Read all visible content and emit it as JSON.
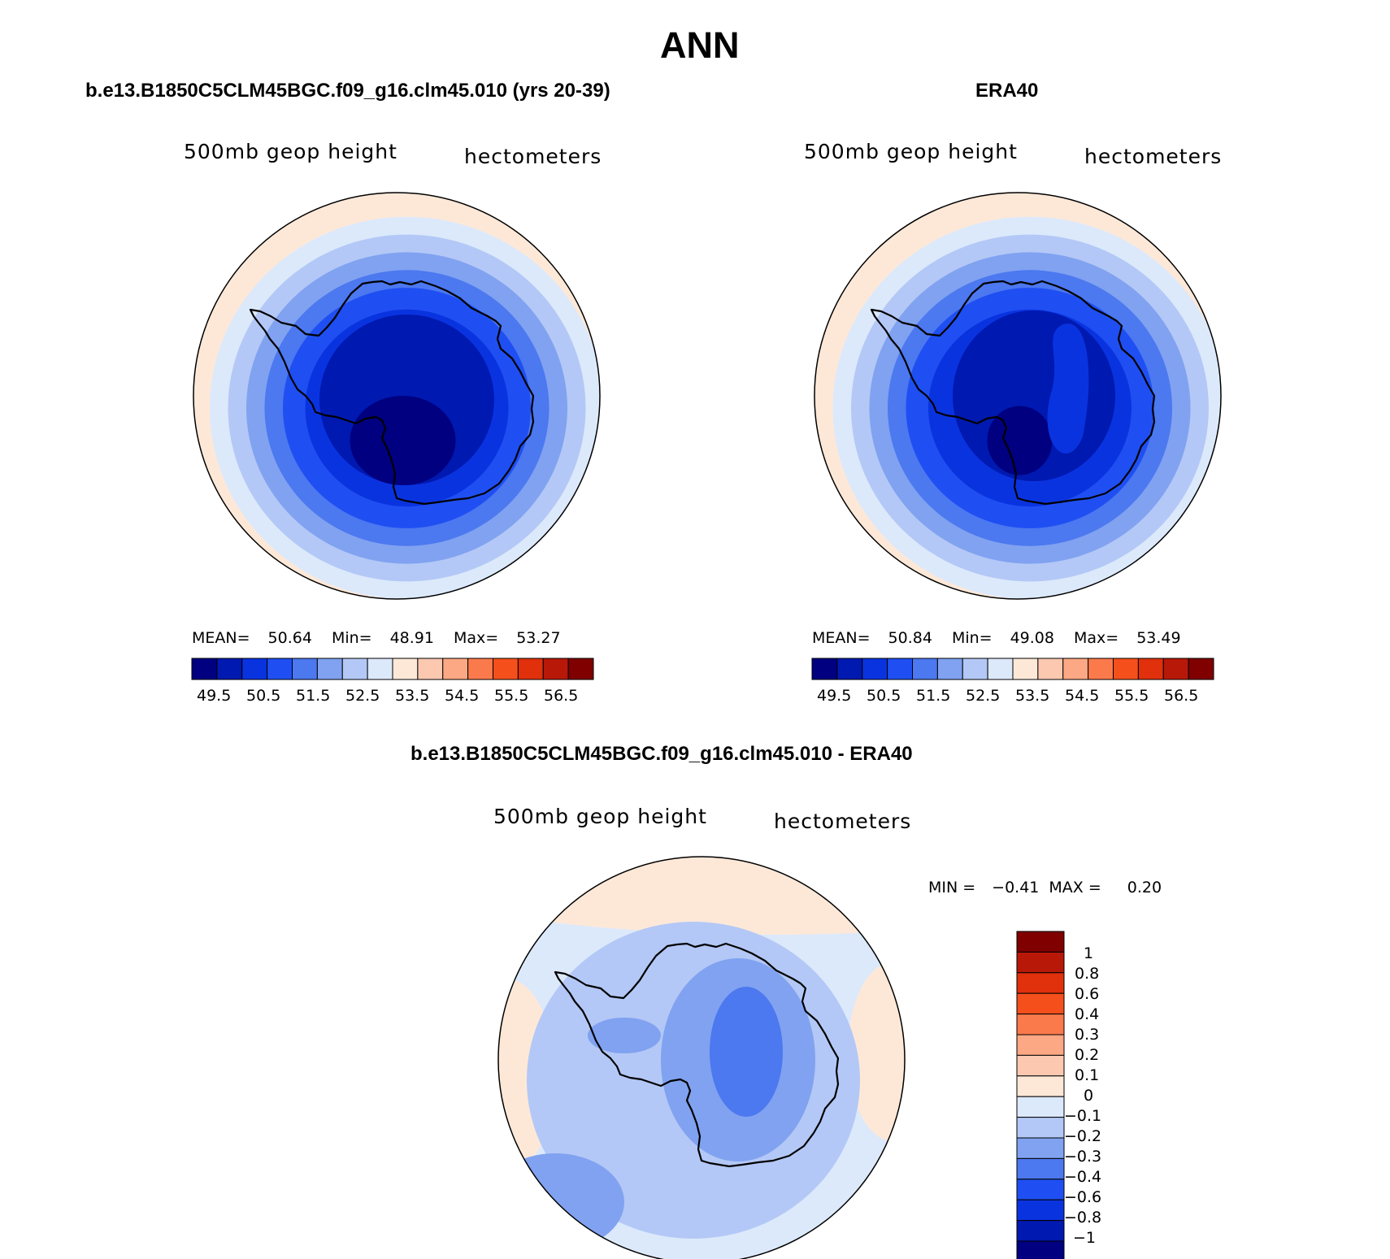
{
  "figure": {
    "season": "ANN",
    "colors": {
      "scale": [
        "#000080",
        "#0019b0",
        "#0a33e0",
        "#1f4ff2",
        "#4c78f0",
        "#80a2f0",
        "#b3c8f6",
        "#dce9fb",
        "#fde8d8",
        "#fcc8b0",
        "#fca884",
        "#fb7a4c",
        "#f5501c",
        "#e0300c",
        "#b81808",
        "#800000"
      ]
    },
    "panels": [
      {
        "id": "model",
        "title": "b.e13.B1850C5CLM45BGC.f09_g16.clm45.010 (yrs 20-39)",
        "variable": "500mb geop height",
        "units": "hectometers",
        "stats": {
          "mean_label": "MEAN=",
          "mean": "50.64",
          "min_label": "Min=",
          "min": "48.91",
          "max_label": "Max=",
          "max": "53.27"
        },
        "colorbar_labels": [
          "49.5",
          "50.5",
          "51.5",
          "52.5",
          "53.5",
          "54.5",
          "55.5",
          "56.5"
        ]
      },
      {
        "id": "obs",
        "title": "ERA40",
        "variable": "500mb geop height",
        "units": "hectometers",
        "stats": {
          "mean_label": "MEAN=",
          "mean": "50.84",
          "min_label": "Min=",
          "min": "49.08",
          "max_label": "Max=",
          "max": "53.49"
        },
        "colorbar_labels": [
          "49.5",
          "50.5",
          "51.5",
          "52.5",
          "53.5",
          "54.5",
          "55.5",
          "56.5"
        ]
      },
      {
        "id": "diff",
        "title": "b.e13.B1850C5CLM45BGC.f09_g16.clm45.010 - ERA40",
        "variable": "500mb geop height",
        "units": "hectometers",
        "stats": {
          "min_label": "MIN =",
          "min": "−0.41",
          "max_label": "MAX =",
          "max": "0.20"
        },
        "colorbar_labels": [
          "1",
          "0.8",
          "0.6",
          "0.4",
          "0.3",
          "0.2",
          "0.1",
          "0",
          "−0.1",
          "−0.2",
          "−0.3",
          "−0.4",
          "−0.6",
          "−0.8",
          "−1"
        ]
      }
    ]
  }
}
